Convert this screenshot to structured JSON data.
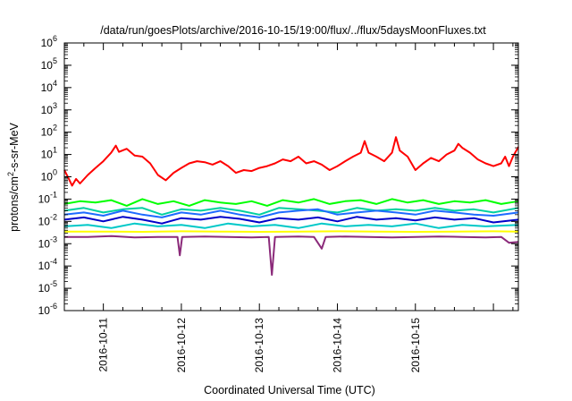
{
  "chart_data": {
    "type": "line",
    "title": "/data/run/goesPlots/archive/2016-10-15/19:00/flux/../flux/5daysMoonFluxes.txt",
    "xlabel": "Coordinated Universal Time (UTC)",
    "ylabel": {
      "base": "protons/cm",
      "exp": "2",
      "rest": "-s-sr-MeV"
    },
    "yscale": "log",
    "ylim": [
      1e-06,
      1000000.0
    ],
    "xlim_days": [
      0.0,
      5.82
    ],
    "x_ticks": [
      {
        "label": "2016-10-11",
        "day": 0.5
      },
      {
        "label": "2016-10-12",
        "day": 1.5
      },
      {
        "label": "2016-10-13",
        "day": 2.5
      },
      {
        "label": "2016-10-14",
        "day": 3.5
      },
      {
        "label": "2016-10-15",
        "day": 4.5
      }
    ],
    "y_ticks": [
      {
        "base": "10",
        "exp": "6",
        "value": 1000000.0
      },
      {
        "base": "10",
        "exp": "5",
        "value": 100000.0
      },
      {
        "base": "10",
        "exp": "4",
        "value": 10000.0
      },
      {
        "base": "10",
        "exp": "3",
        "value": 1000.0
      },
      {
        "base": "10",
        "exp": "2",
        "value": 100.0
      },
      {
        "base": "10",
        "exp": "1",
        "value": 10.0
      },
      {
        "base": "10",
        "exp": "0",
        "value": 1.0
      },
      {
        "base": "10",
        "exp": "-1",
        "value": 0.1
      },
      {
        "base": "10",
        "exp": "-2",
        "value": 0.01
      },
      {
        "base": "10",
        "exp": "-3",
        "value": 0.001
      },
      {
        "base": "10",
        "exp": "-4",
        "value": 0.0001
      },
      {
        "base": "10",
        "exp": "-5",
        "value": 1e-05
      },
      {
        "base": "10",
        "exp": "-6",
        "value": 1e-06
      }
    ],
    "grid": false,
    "series": [
      {
        "color": "#ff0000",
        "points": [
          [
            0.0,
            2
          ],
          [
            0.05,
            0.9
          ],
          [
            0.1,
            0.4
          ],
          [
            0.15,
            0.8
          ],
          [
            0.2,
            0.5
          ],
          [
            0.3,
            1.2
          ],
          [
            0.4,
            2.5
          ],
          [
            0.5,
            5
          ],
          [
            0.6,
            12
          ],
          [
            0.66,
            25
          ],
          [
            0.7,
            13
          ],
          [
            0.8,
            18
          ],
          [
            0.9,
            9
          ],
          [
            1.0,
            8
          ],
          [
            1.1,
            4
          ],
          [
            1.2,
            1.2
          ],
          [
            1.3,
            0.7
          ],
          [
            1.4,
            1.5
          ],
          [
            1.5,
            2.5
          ],
          [
            1.6,
            4
          ],
          [
            1.7,
            5
          ],
          [
            1.8,
            4.5
          ],
          [
            1.9,
            3.5
          ],
          [
            2.0,
            5
          ],
          [
            2.1,
            3
          ],
          [
            2.2,
            1.5
          ],
          [
            2.3,
            2
          ],
          [
            2.4,
            1.8
          ],
          [
            2.5,
            2.5
          ],
          [
            2.6,
            3
          ],
          [
            2.7,
            4
          ],
          [
            2.8,
            6
          ],
          [
            2.9,
            5
          ],
          [
            3.0,
            8
          ],
          [
            3.1,
            4
          ],
          [
            3.2,
            5
          ],
          [
            3.3,
            3.5
          ],
          [
            3.4,
            2
          ],
          [
            3.5,
            3
          ],
          [
            3.6,
            5
          ],
          [
            3.7,
            8
          ],
          [
            3.8,
            12
          ],
          [
            3.85,
            40
          ],
          [
            3.9,
            12
          ],
          [
            4.0,
            8
          ],
          [
            4.1,
            5
          ],
          [
            4.2,
            12
          ],
          [
            4.25,
            60
          ],
          [
            4.3,
            15
          ],
          [
            4.4,
            8
          ],
          [
            4.5,
            2
          ],
          [
            4.6,
            4
          ],
          [
            4.7,
            7
          ],
          [
            4.8,
            5
          ],
          [
            4.9,
            10
          ],
          [
            5.0,
            15
          ],
          [
            5.05,
            30
          ],
          [
            5.1,
            20
          ],
          [
            5.2,
            12
          ],
          [
            5.3,
            6
          ],
          [
            5.4,
            4
          ],
          [
            5.5,
            3
          ],
          [
            5.6,
            4
          ],
          [
            5.65,
            8
          ],
          [
            5.7,
            3
          ],
          [
            5.75,
            8
          ],
          [
            5.82,
            22
          ]
        ]
      },
      {
        "color": "#00ff00",
        "points": [
          [
            0.0,
            0.06
          ],
          [
            0.2,
            0.08
          ],
          [
            0.4,
            0.07
          ],
          [
            0.6,
            0.09
          ],
          [
            0.8,
            0.05
          ],
          [
            1.0,
            0.1
          ],
          [
            1.2,
            0.06
          ],
          [
            1.4,
            0.08
          ],
          [
            1.6,
            0.05
          ],
          [
            1.8,
            0.09
          ],
          [
            2.0,
            0.07
          ],
          [
            2.2,
            0.06
          ],
          [
            2.4,
            0.08
          ],
          [
            2.6,
            0.05
          ],
          [
            2.8,
            0.09
          ],
          [
            3.0,
            0.07
          ],
          [
            3.2,
            0.1
          ],
          [
            3.4,
            0.06
          ],
          [
            3.6,
            0.08
          ],
          [
            3.8,
            0.09
          ],
          [
            4.0,
            0.06
          ],
          [
            4.2,
            0.1
          ],
          [
            4.4,
            0.07
          ],
          [
            4.6,
            0.09
          ],
          [
            4.8,
            0.06
          ],
          [
            5.0,
            0.08
          ],
          [
            5.2,
            0.07
          ],
          [
            5.4,
            0.09
          ],
          [
            5.6,
            0.06
          ],
          [
            5.82,
            0.08
          ]
        ]
      },
      {
        "color": "#00d0a0",
        "points": [
          [
            0.0,
            0.03
          ],
          [
            0.25,
            0.04
          ],
          [
            0.5,
            0.025
          ],
          [
            0.75,
            0.035
          ],
          [
            1.0,
            0.04
          ],
          [
            1.25,
            0.02
          ],
          [
            1.5,
            0.035
          ],
          [
            1.75,
            0.03
          ],
          [
            2.0,
            0.04
          ],
          [
            2.25,
            0.03
          ],
          [
            2.5,
            0.02
          ],
          [
            2.75,
            0.04
          ],
          [
            3.0,
            0.035
          ],
          [
            3.25,
            0.03
          ],
          [
            3.5,
            0.025
          ],
          [
            3.75,
            0.04
          ],
          [
            4.0,
            0.03
          ],
          [
            4.25,
            0.035
          ],
          [
            4.5,
            0.03
          ],
          [
            4.75,
            0.04
          ],
          [
            5.0,
            0.03
          ],
          [
            5.25,
            0.035
          ],
          [
            5.5,
            0.025
          ],
          [
            5.82,
            0.04
          ]
        ]
      },
      {
        "color": "#1e6bff",
        "points": [
          [
            0.0,
            0.02
          ],
          [
            0.25,
            0.025
          ],
          [
            0.5,
            0.018
          ],
          [
            0.75,
            0.03
          ],
          [
            1.0,
            0.02
          ],
          [
            1.25,
            0.015
          ],
          [
            1.5,
            0.025
          ],
          [
            1.75,
            0.02
          ],
          [
            2.0,
            0.03
          ],
          [
            2.25,
            0.02
          ],
          [
            2.5,
            0.015
          ],
          [
            2.75,
            0.025
          ],
          [
            3.0,
            0.03
          ],
          [
            3.25,
            0.035
          ],
          [
            3.5,
            0.02
          ],
          [
            3.75,
            0.025
          ],
          [
            4.0,
            0.03
          ],
          [
            4.25,
            0.025
          ],
          [
            4.5,
            0.02
          ],
          [
            4.75,
            0.03
          ],
          [
            5.0,
            0.025
          ],
          [
            5.25,
            0.02
          ],
          [
            5.5,
            0.018
          ],
          [
            5.82,
            0.025
          ]
        ]
      },
      {
        "color": "#0000c8",
        "points": [
          [
            0.0,
            0.012
          ],
          [
            0.25,
            0.015
          ],
          [
            0.5,
            0.01
          ],
          [
            0.75,
            0.016
          ],
          [
            1.0,
            0.012
          ],
          [
            1.25,
            0.008
          ],
          [
            1.5,
            0.014
          ],
          [
            1.75,
            0.012
          ],
          [
            2.0,
            0.016
          ],
          [
            2.25,
            0.013
          ],
          [
            2.5,
            0.009
          ],
          [
            2.75,
            0.014
          ],
          [
            3.0,
            0.012
          ],
          [
            3.25,
            0.015
          ],
          [
            3.5,
            0.01
          ],
          [
            3.75,
            0.016
          ],
          [
            4.0,
            0.012
          ],
          [
            4.25,
            0.014
          ],
          [
            4.5,
            0.011
          ],
          [
            4.75,
            0.015
          ],
          [
            5.0,
            0.012
          ],
          [
            5.25,
            0.014
          ],
          [
            5.5,
            0.009
          ],
          [
            5.82,
            0.012
          ]
        ]
      },
      {
        "color": "#00c8c8",
        "points": [
          [
            0.0,
            0.006
          ],
          [
            0.3,
            0.007
          ],
          [
            0.6,
            0.005
          ],
          [
            0.9,
            0.008
          ],
          [
            1.2,
            0.006
          ],
          [
            1.5,
            0.007
          ],
          [
            1.8,
            0.005
          ],
          [
            2.1,
            0.008
          ],
          [
            2.4,
            0.006
          ],
          [
            2.7,
            0.007
          ],
          [
            3.0,
            0.005
          ],
          [
            3.3,
            0.008
          ],
          [
            3.6,
            0.006
          ],
          [
            3.9,
            0.007
          ],
          [
            4.2,
            0.006
          ],
          [
            4.5,
            0.008
          ],
          [
            4.8,
            0.005
          ],
          [
            5.1,
            0.007
          ],
          [
            5.4,
            0.006
          ],
          [
            5.82,
            0.007
          ]
        ]
      },
      {
        "color": "#ffff00",
        "points": [
          [
            0.0,
            0.0035
          ],
          [
            0.5,
            0.0035
          ],
          [
            1.0,
            0.0034
          ],
          [
            1.5,
            0.0036
          ],
          [
            2.0,
            0.0035
          ],
          [
            2.5,
            0.0034
          ],
          [
            3.0,
            0.0035
          ],
          [
            3.5,
            0.0036
          ],
          [
            4.0,
            0.0035
          ],
          [
            4.5,
            0.0034
          ],
          [
            5.0,
            0.0035
          ],
          [
            5.5,
            0.0036
          ],
          [
            5.82,
            0.0035
          ]
        ]
      },
      {
        "color": "#8b2a7a",
        "points": [
          [
            0.0,
            0.002
          ],
          [
            0.3,
            0.002
          ],
          [
            0.6,
            0.0022
          ],
          [
            0.9,
            0.0019
          ],
          [
            1.2,
            0.002
          ],
          [
            1.45,
            0.002
          ],
          [
            1.48,
            0.0003
          ],
          [
            1.51,
            0.002
          ],
          [
            1.8,
            0.0021
          ],
          [
            2.1,
            0.002
          ],
          [
            2.4,
            0.0019
          ],
          [
            2.62,
            0.002
          ],
          [
            2.66,
            4e-05
          ],
          [
            2.7,
            0.002
          ],
          [
            3.0,
            0.0021
          ],
          [
            3.2,
            0.002
          ],
          [
            3.3,
            0.0006
          ],
          [
            3.35,
            0.002
          ],
          [
            3.6,
            0.0021
          ],
          [
            3.9,
            0.002
          ],
          [
            4.2,
            0.0019
          ],
          [
            4.5,
            0.002
          ],
          [
            4.8,
            0.0021
          ],
          [
            5.1,
            0.002
          ],
          [
            5.4,
            0.0019
          ],
          [
            5.6,
            0.002
          ],
          [
            5.7,
            0.0011
          ],
          [
            5.82,
            0.0012
          ]
        ]
      }
    ]
  }
}
